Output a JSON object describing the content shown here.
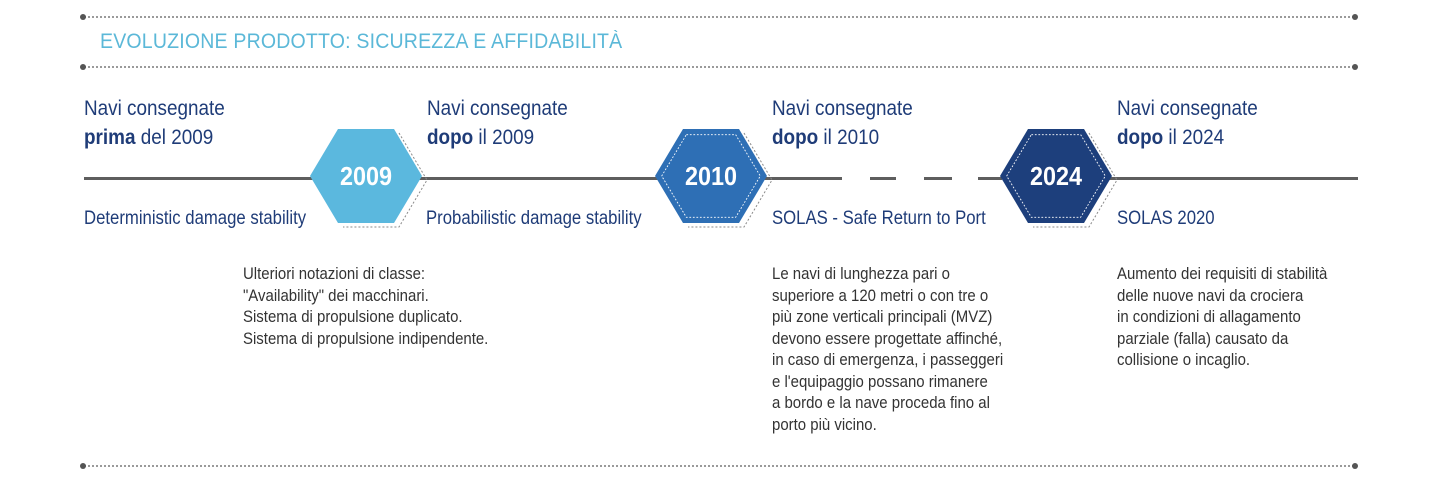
{
  "title": "EVOLUZIONE PRODOTTO: SICUREZZA E AFFIDABILITÀ",
  "milestones": [
    {
      "heading_line1": "Navi consegnate",
      "heading_bold": "prima",
      "heading_rest": " del 2009",
      "standard": "Deterministic damage stability"
    },
    {
      "heading_line1": "Navi consegnate",
      "heading_bold": "dopo",
      "heading_rest": " il 2009",
      "standard": "Probabilistic damage stability",
      "year": "2009",
      "color": "#5bb8de",
      "notes": [
        "Ulteriori notazioni di classe:",
        "\"Availability\" dei macchinari.",
        "Sistema di propulsione duplicato.",
        "Sistema di propulsione indipendente."
      ]
    },
    {
      "heading_line1": "Navi consegnate",
      "heading_bold": "dopo",
      "heading_rest": " il 2010",
      "standard": "SOLAS - Safe Return to Port",
      "year": "2010",
      "color": "#2e6fb5",
      "notes": [
        "Le navi di lunghezza pari o",
        "superiore a 120 metri o con tre o",
        "più zone verticali principali (MVZ)",
        "devono essere progettate affinché,",
        "in caso di emergenza, i passeggeri",
        "e l'equipaggio possano rimanere",
        "a bordo e la nave proceda fino al",
        "porto più vicino."
      ]
    },
    {
      "heading_line1": "Navi consegnate",
      "heading_bold": "dopo",
      "heading_rest": " il 2024",
      "standard": "SOLAS 2020",
      "year": "2024",
      "color": "#1d3f7c",
      "notes": [
        "Aumento dei requisiti di stabilità",
        "delle nuove navi da crociera",
        "in condizioni di allagamento",
        "parziale (falla) causato da",
        "collisione o incaglio."
      ]
    }
  ]
}
